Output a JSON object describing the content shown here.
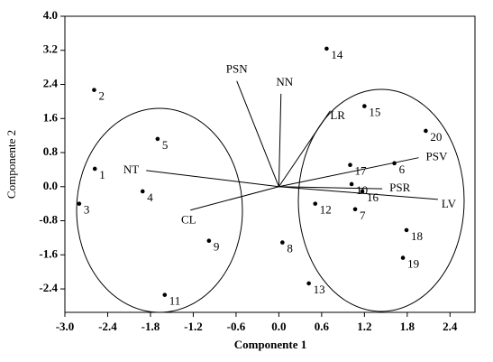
{
  "chart_data": {
    "type": "biplot",
    "xlabel": "Componente 1",
    "ylabel": "Componente 2",
    "xlim": [
      -3.0,
      2.75
    ],
    "ylim": [
      -2.95,
      4.0
    ],
    "xticks": [
      {
        "value": -3.0,
        "label": "-3.0"
      },
      -2.4,
      -1.8,
      -1.2,
      -0.6,
      {
        "value": 0,
        "label": "0.0"
      },
      0.6,
      1.2,
      1.8,
      2.4
    ],
    "yticks": [
      -2.4,
      -1.6,
      -0.8,
      {
        "value": 0,
        "label": "0.0"
      },
      0.8,
      1.6,
      2.4,
      3.2,
      {
        "value": 4,
        "label": "4.0"
      }
    ],
    "points": {
      "labels": [
        "1",
        "2",
        "3",
        "4",
        "5",
        "6",
        "7",
        "8",
        "9",
        "10",
        "11",
        "12",
        "13",
        "14",
        "15",
        "16",
        "17",
        "18",
        "19",
        "20"
      ],
      "x": [
        -2.58,
        -2.59,
        -2.8,
        -1.91,
        -1.7,
        1.62,
        1.07,
        0.05,
        -0.98,
        1.02,
        -1.6,
        0.51,
        0.42,
        0.67,
        1.2,
        1.17,
        1.0,
        1.79,
        1.74,
        2.06
      ],
      "y": [
        0.42,
        2.27,
        -0.4,
        -0.11,
        1.12,
        0.55,
        -0.53,
        -1.31,
        -1.27,
        0.06,
        -2.54,
        -0.4,
        -2.27,
        3.24,
        1.89,
        -0.11,
        0.51,
        -1.02,
        -1.67,
        1.31
      ]
    },
    "vectors": {
      "labels": [
        "PSN",
        "NN",
        "LR",
        "NT",
        "CL",
        "PSV",
        "PSR",
        "LV"
      ],
      "x": [
        -0.59,
        0.03,
        0.72,
        -1.86,
        -1.24,
        1.96,
        1.45,
        2.23
      ],
      "y": [
        2.48,
        2.18,
        1.78,
        0.38,
        -0.55,
        0.68,
        -0.05,
        -0.3
      ]
    }
  }
}
